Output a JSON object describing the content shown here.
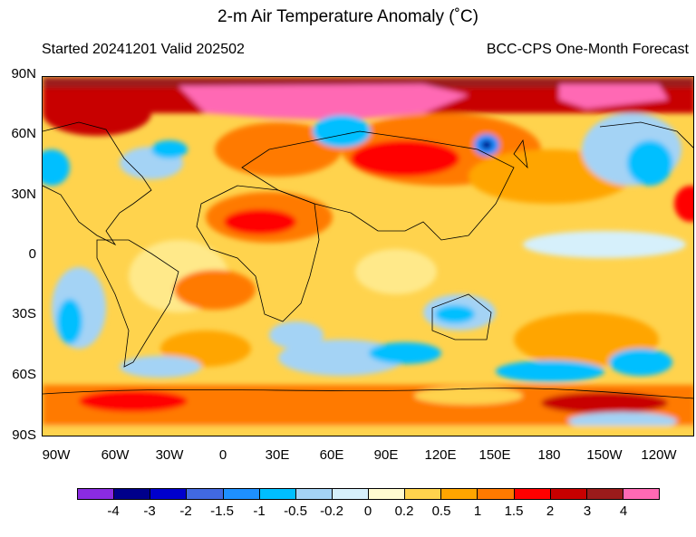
{
  "title": "2-m Air Temperature Anomaly (˚C)",
  "subtitle_left": "Started 20241201  Valid 202502",
  "subtitle_right": "BCC-CPS One-Month Forecast",
  "lat_labels": [
    "90N",
    "60N",
    "30N",
    "0",
    "30S",
    "60S",
    "90S"
  ],
  "lon_labels": [
    "90W",
    "60W",
    "30W",
    "0",
    "30E",
    "60E",
    "90E",
    "120E",
    "150E",
    "180",
    "150W",
    "120W"
  ],
  "colorbar": {
    "labels": [
      "-4",
      "-3",
      "-2",
      "-1.5",
      "-1",
      "-0.5",
      "-0.2",
      "0",
      "0.2",
      "0.5",
      "1",
      "1.5",
      "2",
      "3",
      "4"
    ],
    "colors": [
      "#8a2be2",
      "#00008b",
      "#0000cd",
      "#4169e1",
      "#1e90ff",
      "#00bfff",
      "#a4d3f5",
      "#d6f0fb",
      "#fffbd0",
      "#ffd34d",
      "#ffa500",
      "#ff7a00",
      "#ff0000",
      "#c80000",
      "#9b1b1b",
      "#ff69b4"
    ]
  }
}
